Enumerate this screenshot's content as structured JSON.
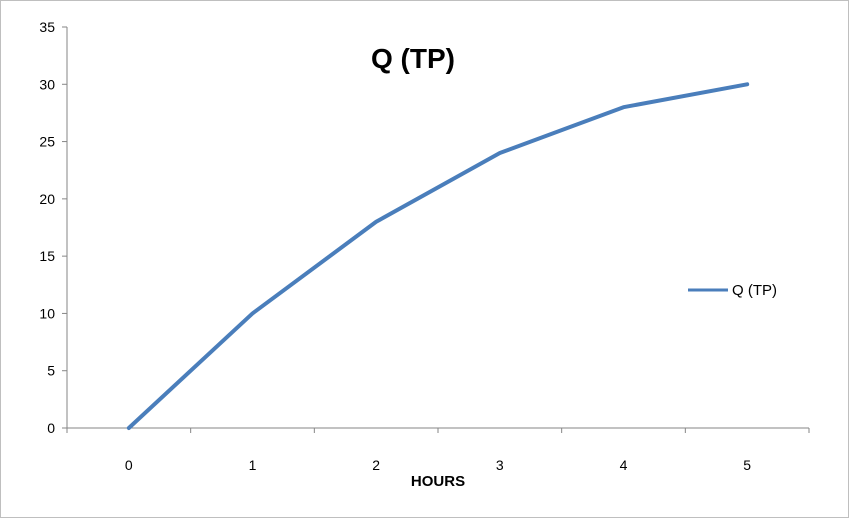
{
  "chart_data": {
    "type": "line",
    "title": "Q (TP)",
    "xlabel": "HOURS",
    "ylabel": "",
    "categories": [
      "0",
      "1",
      "2",
      "3",
      "4",
      "5"
    ],
    "series": [
      {
        "name": "Q (TP)",
        "values": [
          0,
          10,
          18,
          24,
          28,
          30
        ],
        "color": "#4a7ebb"
      }
    ],
    "ylim": [
      0,
      35
    ],
    "yticks": [
      "0",
      "5",
      "10",
      "15",
      "20",
      "25",
      "30",
      "35"
    ],
    "grid": false,
    "legend_position": "right"
  }
}
